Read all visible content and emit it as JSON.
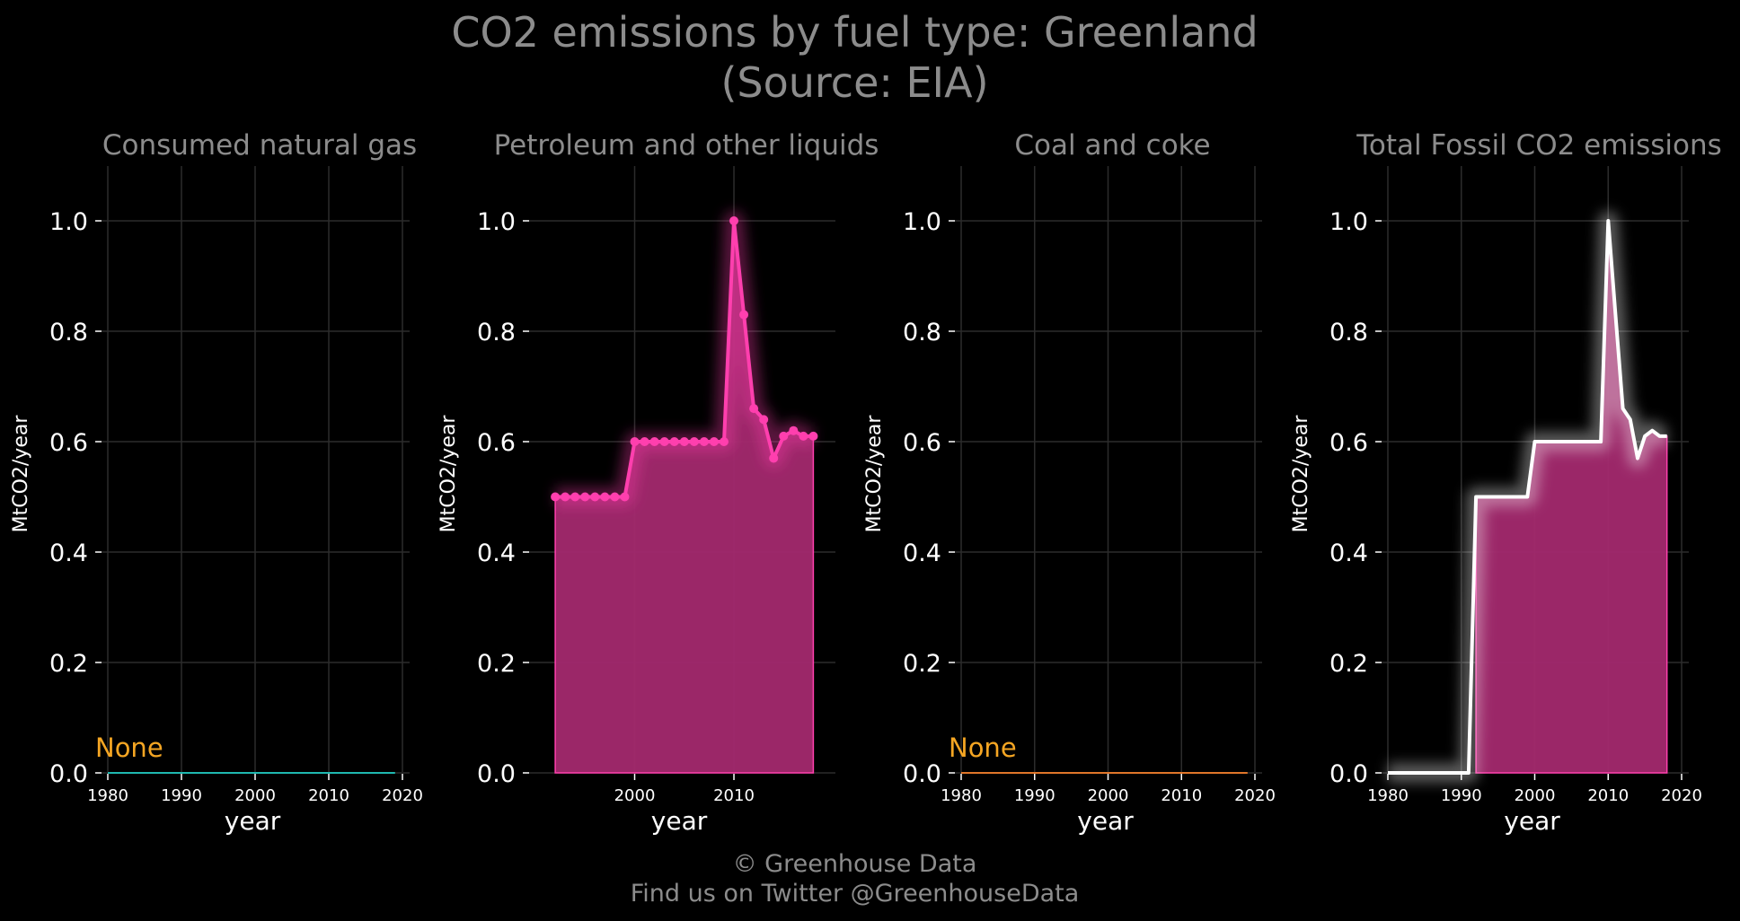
{
  "header": {
    "title_line1": "CO2 emissions by fuel type: Greenland",
    "title_line2": "(Source: EIA)"
  },
  "footer": {
    "credit": "© Greenhouse Data",
    "twitter": "Find us on Twitter @GreenhouseData"
  },
  "colors": {
    "background": "#000000",
    "text": "#8c8c8c",
    "tick_text": "#ffffff",
    "grid": "#2c2c2c",
    "petroleum": "#ff3fae",
    "area_fill": "#a3296e",
    "natural_gas": "#1fb8b0",
    "coal": "#e0762a",
    "total_line": "#ffffff",
    "none_label": "#f5a623"
  },
  "chart_data": [
    {
      "type": "area",
      "title": "Consumed natural gas",
      "xlabel": "year",
      "ylabel": "MtCO2/year",
      "xlim": [
        1980,
        2020
      ],
      "ylim": [
        0,
        1.1
      ],
      "xticks": [
        1980,
        1990,
        2000,
        2010,
        2020
      ],
      "yticks": [
        0.0,
        0.2,
        0.4,
        0.6,
        0.8,
        1.0
      ],
      "grid": true,
      "annotation": "None",
      "series": [
        {
          "x": [
            1980,
            2019
          ],
          "y": [
            0,
            0
          ],
          "color": "#1fb8b0"
        }
      ]
    },
    {
      "type": "area",
      "title": "Petroleum and other liquids",
      "xlabel": "year",
      "ylabel": "MtCO2/year",
      "xlim": [
        1990,
        2019.5
      ],
      "ylim": [
        0,
        1.1
      ],
      "xticks": [
        2000,
        2010
      ],
      "yticks": [
        0.0,
        0.2,
        0.4,
        0.6,
        0.8,
        1.0
      ],
      "grid": true,
      "series": [
        {
          "x": [
            1992,
            1993,
            1994,
            1995,
            1996,
            1997,
            1998,
            1999,
            2000,
            2001,
            2002,
            2003,
            2004,
            2005,
            2006,
            2007,
            2008,
            2009,
            2010,
            2011,
            2012,
            2013,
            2014,
            2015,
            2016,
            2017,
            2018
          ],
          "y": [
            0.5,
            0.5,
            0.5,
            0.5,
            0.5,
            0.5,
            0.5,
            0.5,
            0.6,
            0.6,
            0.6,
            0.6,
            0.6,
            0.6,
            0.6,
            0.6,
            0.6,
            0.6,
            1.0,
            0.83,
            0.66,
            0.64,
            0.57,
            0.61,
            0.62,
            0.61,
            0.61
          ],
          "color": "#ff3fae"
        }
      ]
    },
    {
      "type": "area",
      "title": "Coal and coke",
      "xlabel": "year",
      "ylabel": "MtCO2/year",
      "xlim": [
        1980,
        2020
      ],
      "ylim": [
        0,
        1.1
      ],
      "xticks": [
        1980,
        1990,
        2000,
        2010,
        2020
      ],
      "yticks": [
        0.0,
        0.2,
        0.4,
        0.6,
        0.8,
        1.0
      ],
      "grid": true,
      "annotation": "None",
      "series": [
        {
          "x": [
            1980,
            2019
          ],
          "y": [
            0,
            0
          ],
          "color": "#e0762a"
        }
      ]
    },
    {
      "type": "area",
      "title": "Total Fossil CO2 emissions",
      "xlabel": "year",
      "ylabel": "MtCO2/year",
      "xlim": [
        1980,
        2020
      ],
      "ylim": [
        0,
        1.1
      ],
      "xticks": [
        1980,
        1990,
        2000,
        2010,
        2020
      ],
      "yticks": [
        0.0,
        0.2,
        0.4,
        0.6,
        0.8,
        1.0
      ],
      "grid": true,
      "series": [
        {
          "x": [
            1980,
            1981,
            1982,
            1983,
            1984,
            1985,
            1986,
            1987,
            1988,
            1989,
            1990,
            1991,
            1992,
            1993,
            1994,
            1995,
            1996,
            1997,
            1998,
            1999,
            2000,
            2001,
            2002,
            2003,
            2004,
            2005,
            2006,
            2007,
            2008,
            2009,
            2010,
            2011,
            2012,
            2013,
            2014,
            2015,
            2016,
            2017,
            2018
          ],
          "y": [
            0,
            0,
            0,
            0,
            0,
            0,
            0,
            0,
            0,
            0,
            0,
            0,
            0.5,
            0.5,
            0.5,
            0.5,
            0.5,
            0.5,
            0.5,
            0.5,
            0.6,
            0.6,
            0.6,
            0.6,
            0.6,
            0.6,
            0.6,
            0.6,
            0.6,
            0.6,
            1.0,
            0.83,
            0.66,
            0.64,
            0.57,
            0.61,
            0.62,
            0.61,
            0.61
          ],
          "color": "#ffffff"
        }
      ],
      "area_from": 1992
    }
  ]
}
